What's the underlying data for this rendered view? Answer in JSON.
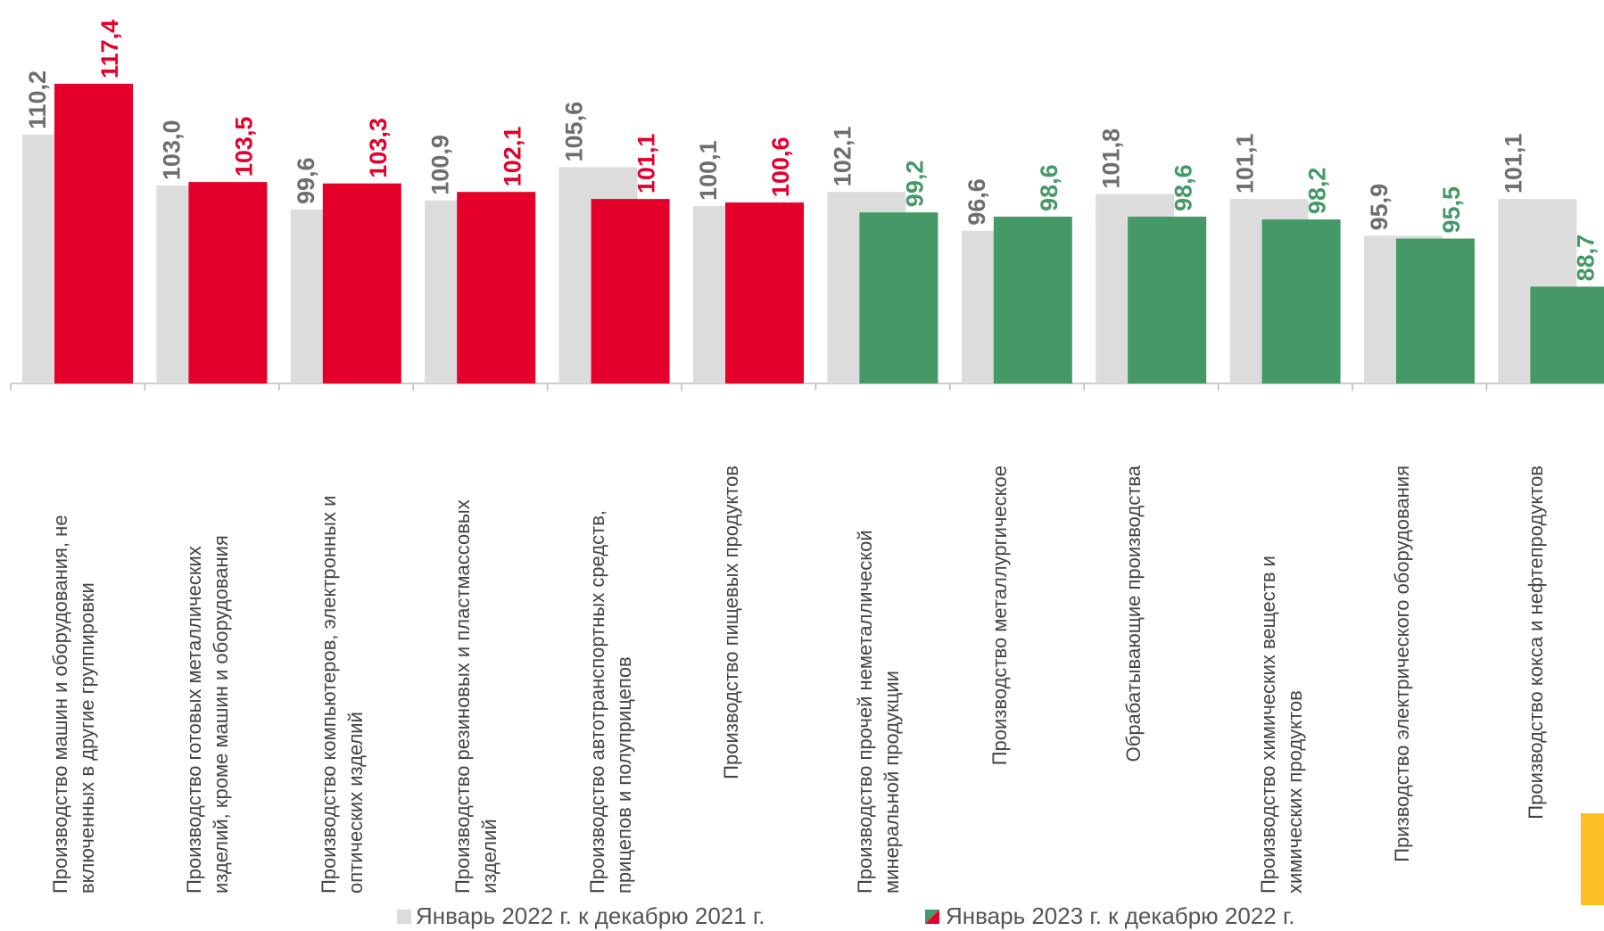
{
  "chart_data": {
    "type": "bar",
    "categories": [
      "Производство машин и оборудования, не включенных в другие группировки",
      "Производство готовых металлических изделий, кроме машин и оборудования",
      "Производство компьютеров, электронных и оптических изделий",
      "Производство резиновых и пластмассовых изделий",
      "Производство автотранспортных средств, прицепов и полуприцепов",
      "Производство пищевых продуктов",
      "Производство прочей неметаллической минеральной продукции",
      "Производство металлургическое",
      "Обрабатывающие производства",
      "Производство химических веществ и химических продуктов",
      "Призводство электрического оборудования",
      "Производство кокса и нефтепродуктов"
    ],
    "series": [
      {
        "name": "Январь 2022 г. к декабрю 2021 г.",
        "color": "#dcdcdc",
        "label_color": "#6e6e6e",
        "values": [
          110.2,
          103.0,
          99.6,
          100.9,
          105.6,
          100.1,
          102.1,
          96.6,
          101.8,
          101.1,
          95.9,
          101.1
        ],
        "value_labels": [
          "110,2",
          "103,0",
          "99,6",
          "100,9",
          "105,6",
          "100,1",
          "102,1",
          "96,6",
          "101,8",
          "101,1",
          "95,9",
          "101,1"
        ]
      },
      {
        "name": "Январь 2023 г. к декабрю 2022 г.",
        "colors": [
          "#e4002b",
          "#e4002b",
          "#e4002b",
          "#e4002b",
          "#e4002b",
          "#e4002b",
          "#449966",
          "#449966",
          "#449966",
          "#449966",
          "#449966",
          "#449966"
        ],
        "values": [
          117.4,
          103.5,
          103.3,
          102.1,
          101.1,
          100.6,
          99.2,
          98.6,
          98.6,
          98.2,
          95.5,
          88.7
        ],
        "value_labels": [
          "117,4",
          "103,5",
          "103,3",
          "102,1",
          "101,1",
          "100,6",
          "99,2",
          "98,6",
          "98,6",
          "98,2",
          "95,5",
          "88,7"
        ]
      }
    ],
    "ylim": [
      75,
      129
    ]
  }
}
